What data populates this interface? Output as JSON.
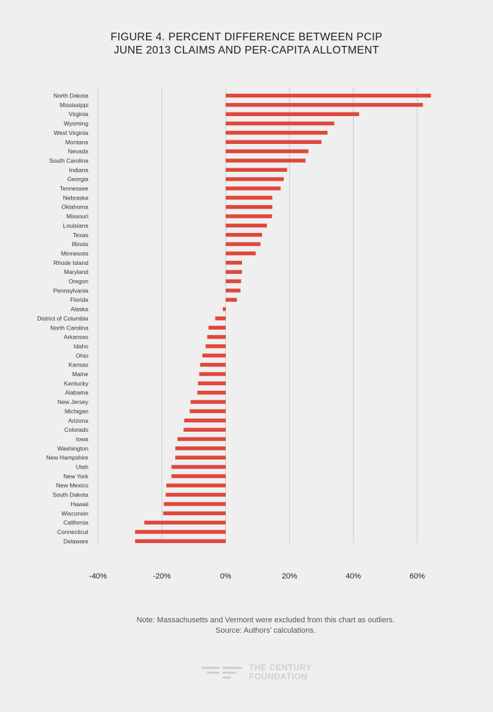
{
  "title_lines": [
    "Figure 4. Percent Difference Between PCIP",
    "June 2013 Claims and Per-Capita Allotment"
  ],
  "note": "Note: Massachusetts and Vermont were excluded from this chart as outliers.",
  "source": "Source: Authors’ calculations.",
  "logo": {
    "line1": "THE CENTURY",
    "line2": "FOUNDATION"
  },
  "colors": {
    "bar": "#e0473b",
    "grid": "#cccccc",
    "background": "#efefef",
    "text": "#222222"
  },
  "chart_data": {
    "type": "bar",
    "orientation": "horizontal",
    "title": "FIGURE 4. PERCENT DIFFERENCE BETWEEN PCIP JUNE 2013 CLAIMS AND PER-CAPITA ALLOTMENT",
    "xlim": [
      -40,
      60
    ],
    "xticks": [
      -40,
      -20,
      0,
      20,
      40,
      60
    ],
    "xtick_labels": [
      "-40%",
      "-20%",
      "0%",
      "20%",
      "40%",
      "60%"
    ],
    "grid": true,
    "categories": [
      "North Dakota",
      "Mississippi",
      "Virginia",
      "Wyoming",
      "West Virginia",
      "Montana",
      "Nevada",
      "South Carolina",
      "Indiana",
      "Georgia",
      "Tennessee",
      "Nebraska",
      "Oklahoma",
      "Missouri",
      "Louisiana",
      "Texas",
      "Illinois",
      "Minnesota",
      "Rhode Island",
      "Maryland",
      "Oregon",
      "Pennsylvania",
      "Florida",
      "Alaska",
      "District of Columbia",
      "North Carolina",
      "Arkansas",
      "Idaho",
      "Ohio",
      "Kansas",
      "Maine",
      "Kentucky",
      "Alabama",
      "New Jersey",
      "Michigan",
      "Arizona",
      "Colorado",
      "Iowa",
      "Washington",
      "New Hampshire",
      "Utah",
      "New York",
      "New Mexico",
      "South Dakota",
      "Hawaii",
      "Wisconsin",
      "California",
      "Connecticut",
      "Delaware"
    ],
    "values": [
      64.3,
      61.8,
      41.8,
      34,
      31.9,
      30,
      25.9,
      25,
      19.2,
      18.2,
      17.2,
      14.6,
      14.6,
      14.5,
      12.9,
      11.4,
      10.9,
      9.4,
      5.1,
      5.1,
      4.8,
      4.6,
      3.5,
      -0.9,
      -3.3,
      -5.4,
      -5.8,
      -6.3,
      -7.3,
      -8,
      -8.3,
      -8.7,
      -8.9,
      -11,
      -11.3,
      -13,
      -13.2,
      -15.1,
      -15.8,
      -15.8,
      -17,
      -17,
      -18.6,
      -18.8,
      -19.4,
      -19.6,
      -25.5,
      -28.4,
      -28.4
    ]
  }
}
